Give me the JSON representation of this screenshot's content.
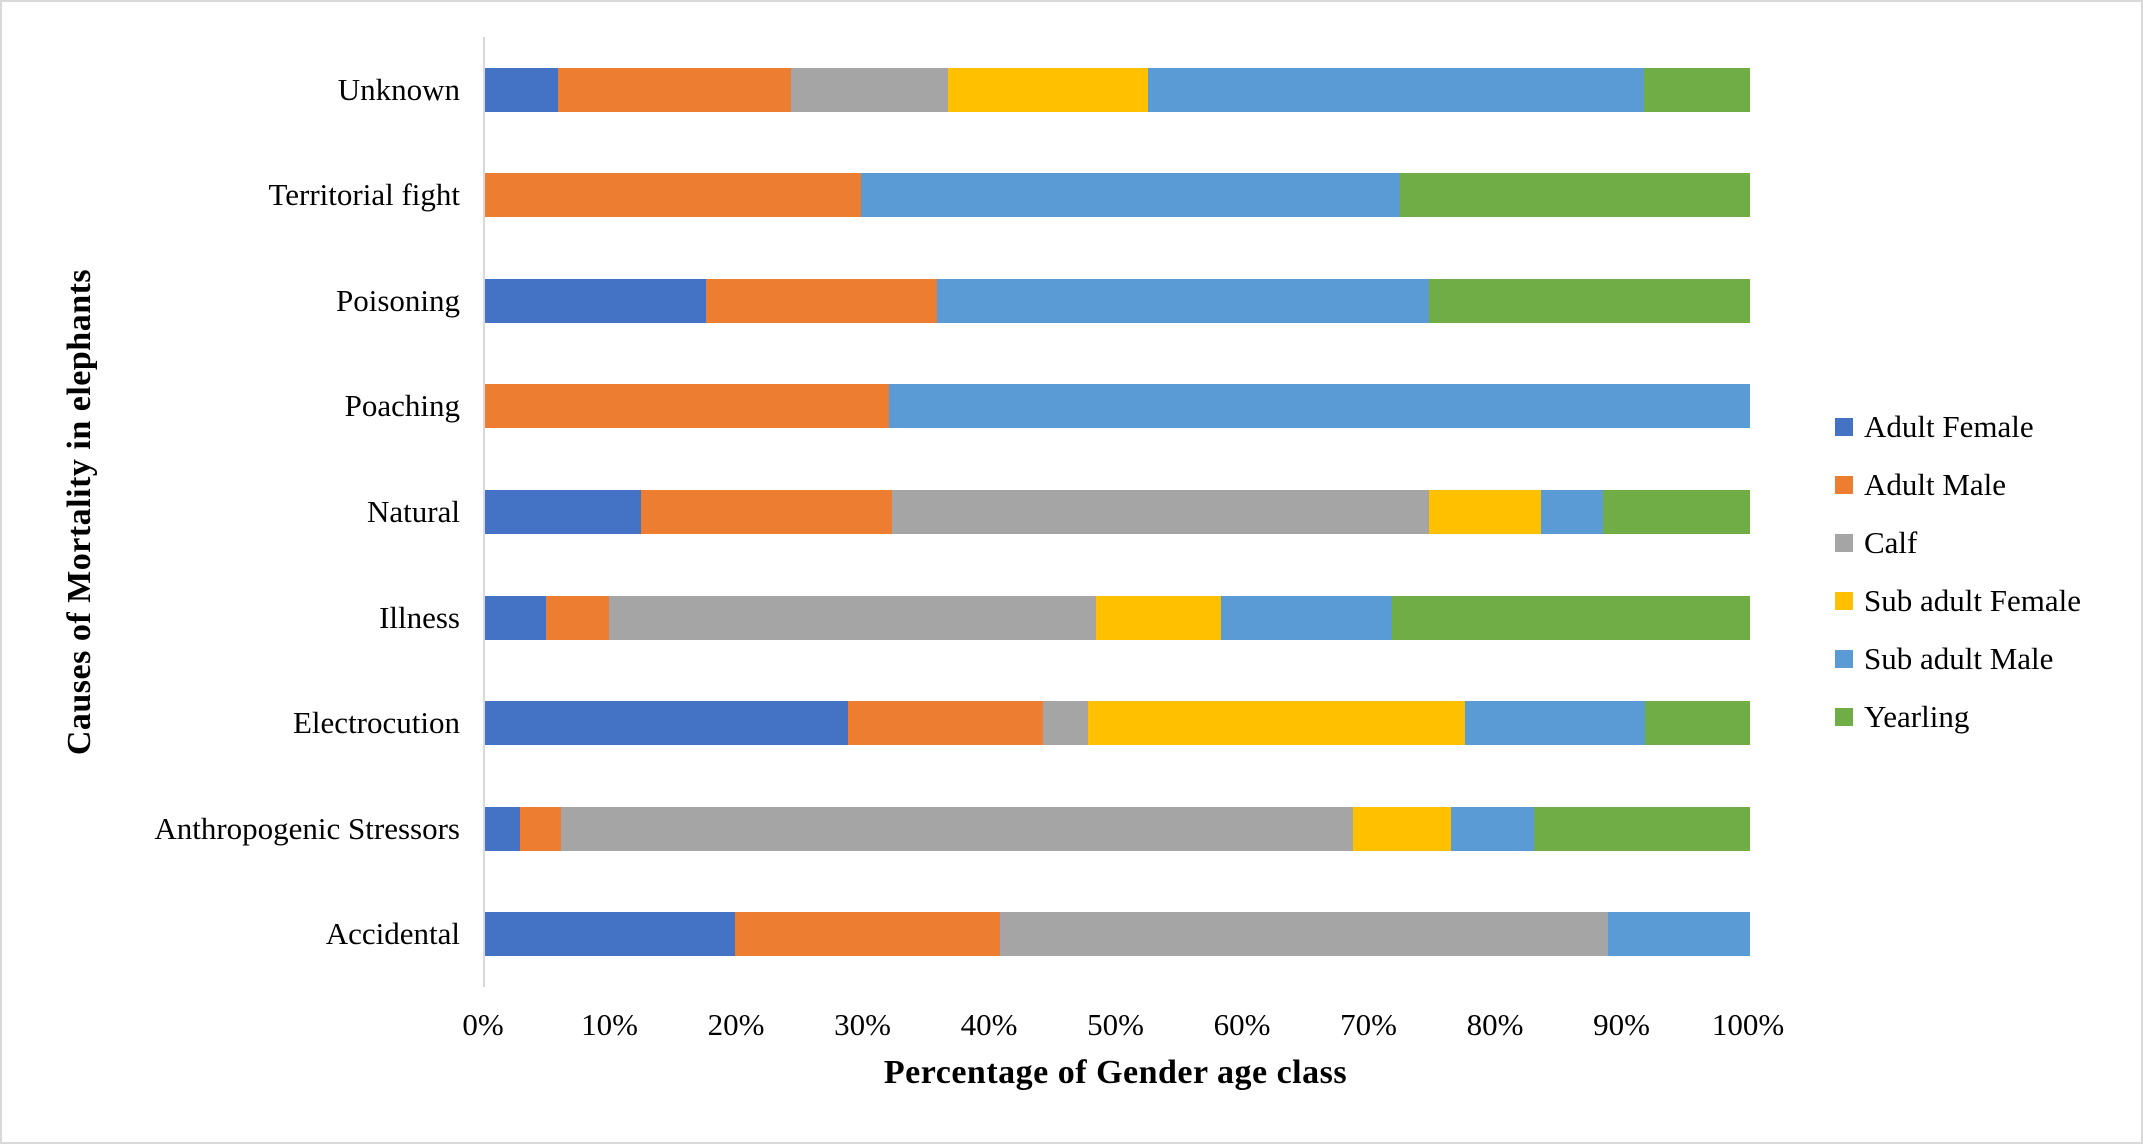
{
  "chart_data": {
    "type": "bar",
    "orientation": "horizontal",
    "stacked": true,
    "title": "",
    "xlabel": "Percentage of Gender age class",
    "ylabel": "Causes of Mortality in elephants",
    "xlim": [
      0,
      100
    ],
    "x_tick_labels": [
      "0%",
      "10%",
      "20%",
      "30%",
      "40%",
      "50%",
      "60%",
      "70%",
      "80%",
      "90%",
      "100%"
    ],
    "grid": false,
    "legend_position": "right",
    "categories": [
      "Unknown",
      "Territorial fight",
      "Poisoning",
      "Poaching",
      "Natural",
      "Illness",
      "Electrocution",
      "Anthropogenic Stressors",
      "Accidental"
    ],
    "series": [
      {
        "name": "Adult Female",
        "color": "#4472C4",
        "values": [
          5.8,
          0,
          17.5,
          0,
          12.3,
          4.8,
          28.7,
          2.8,
          19.8
        ]
      },
      {
        "name": "Adult Male",
        "color": "#ED7D31",
        "values": [
          18.4,
          29.7,
          18.2,
          31.9,
          19.9,
          5.0,
          15.4,
          3.2,
          20.9
        ]
      },
      {
        "name": "Calf",
        "color": "#A5A5A5",
        "values": [
          12.4,
          0,
          0,
          0,
          42.4,
          38.5,
          3.6,
          62.6,
          48.1
        ]
      },
      {
        "name": "Sub adult Female",
        "color": "#FFC000",
        "values": [
          15.8,
          0,
          0,
          0,
          8.9,
          9.9,
          29.8,
          7.8,
          0
        ]
      },
      {
        "name": "Sub adult Male",
        "color": "#5B9BD5",
        "values": [
          39.2,
          42.6,
          38.9,
          68.1,
          4.9,
          13.5,
          14.2,
          6.5,
          11.2
        ]
      },
      {
        "name": "Yearling",
        "color": "#70AD47",
        "values": [
          8.4,
          27.7,
          25.4,
          0,
          11.6,
          28.3,
          8.3,
          17.1,
          0
        ]
      }
    ]
  }
}
